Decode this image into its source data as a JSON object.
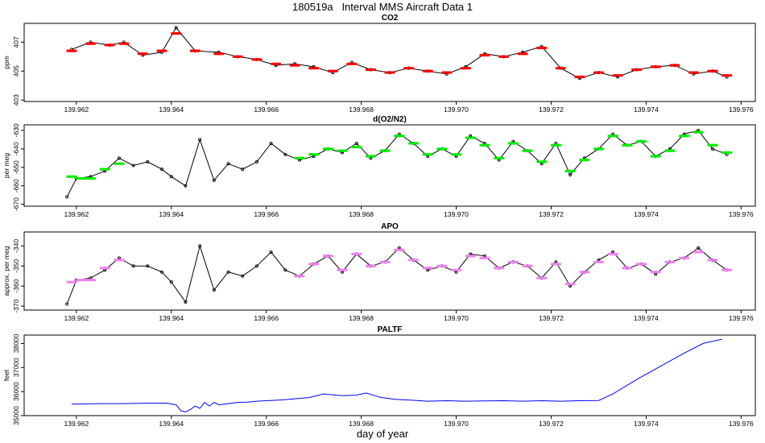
{
  "figure": {
    "title": "180519a   Interval MMS Aircraft Data 1",
    "xlabel": "day of year"
  },
  "chart_data": [
    {
      "type": "scatter",
      "title": "CO2",
      "ylabel": "ppm",
      "xlim": [
        139.9609,
        139.9763
      ],
      "ylim": [
        402.9,
        408.3
      ],
      "xticks": [
        "139.962",
        "139.964",
        "139.966",
        "139.968",
        "139.970",
        "139.972",
        "139.974",
        "139.976"
      ],
      "yticks": [
        "403",
        "405",
        "407"
      ],
      "series": [
        {
          "style": "line-with-points",
          "color": "#000000",
          "x": [
            139.9619,
            139.9623,
            139.9627,
            139.963,
            139.9634,
            139.9638,
            139.9641,
            139.9645,
            139.965,
            139.9654,
            139.9658,
            139.9662,
            139.9666,
            139.967,
            139.9674,
            139.9678,
            139.9682,
            139.9686,
            139.969,
            139.9694,
            139.9698,
            139.9702,
            139.9706,
            139.971,
            139.9714,
            139.9718,
            139.9722,
            139.9726,
            139.973,
            139.9734,
            139.9738,
            139.9742,
            139.9746,
            139.975,
            139.9754,
            139.9757
          ],
          "y": [
            406.5,
            407.0,
            406.8,
            407.0,
            406.1,
            406.3,
            408.0,
            406.4,
            406.3,
            406.0,
            405.8,
            405.4,
            405.5,
            405.3,
            404.9,
            405.6,
            405.1,
            404.9,
            405.2,
            405.0,
            404.8,
            405.3,
            406.2,
            406.0,
            406.3,
            406.7,
            405.2,
            404.5,
            404.9,
            404.6,
            405.1,
            405.3,
            405.4,
            404.8,
            405.0,
            404.6
          ]
        },
        {
          "style": "segments",
          "color": "#ff0000",
          "x": [
            139.9619,
            139.9623,
            139.9627,
            139.963,
            139.9634,
            139.9638,
            139.9641,
            139.9645,
            139.965,
            139.9654,
            139.9658,
            139.9662,
            139.9666,
            139.967,
            139.9674,
            139.9678,
            139.9682,
            139.9686,
            139.969,
            139.9694,
            139.9698,
            139.9702,
            139.9706,
            139.971,
            139.9714,
            139.9718,
            139.9722,
            139.9726,
            139.973,
            139.9734,
            139.9738,
            139.9742,
            139.9746,
            139.975,
            139.9754,
            139.9757
          ],
          "y": [
            406.4,
            406.9,
            406.8,
            406.9,
            406.2,
            406.4,
            407.6,
            406.4,
            406.2,
            406.0,
            405.8,
            405.5,
            405.4,
            405.2,
            405.0,
            405.5,
            405.1,
            404.9,
            405.2,
            405.0,
            404.9,
            405.2,
            406.1,
            406.0,
            406.2,
            406.6,
            405.2,
            404.6,
            404.9,
            404.7,
            405.1,
            405.3,
            405.4,
            404.9,
            405.0,
            404.7
          ]
        }
      ]
    },
    {
      "type": "scatter",
      "title": "d(O2/N2)",
      "ylabel": "per meg",
      "xlim": [
        139.9609,
        139.9763
      ],
      "ylim": [
        -671,
        -627
      ],
      "xticks": [
        "139.962",
        "139.964",
        "139.966",
        "139.968",
        "139.970",
        "139.972",
        "139.974",
        "139.976"
      ],
      "yticks": [
        "-670",
        "-660",
        "-650",
        "-640",
        "-630"
      ],
      "series": [
        {
          "style": "line-with-points",
          "color": "#000000",
          "x": [
            139.9618,
            139.962,
            139.9623,
            139.9626,
            139.9629,
            139.9632,
            139.9635,
            139.9638,
            139.964,
            139.9643,
            139.9646,
            139.9649,
            139.9652,
            139.9655,
            139.9658,
            139.9661,
            139.9664,
            139.9667,
            139.967,
            139.9673,
            139.9676,
            139.9679,
            139.9682,
            139.9685,
            139.9688,
            139.9691,
            139.9694,
            139.9697,
            139.97,
            139.9703,
            139.9706,
            139.9709,
            139.9712,
            139.9715,
            139.9718,
            139.9721,
            139.9724,
            139.9727,
            139.973,
            139.9733,
            139.9736,
            139.9739,
            139.9742,
            139.9745,
            139.9748,
            139.9751,
            139.9754,
            139.9757
          ],
          "y": [
            -666,
            -656,
            -655,
            -652,
            -645,
            -649,
            -647,
            -651,
            -655,
            -660,
            -635,
            -657,
            -648,
            -651,
            -647,
            -637,
            -643,
            -646,
            -644,
            -640,
            -642,
            -637,
            -645,
            -641,
            -632,
            -637,
            -644,
            -640,
            -644,
            -633,
            -637,
            -646,
            -636,
            -641,
            -648,
            -637,
            -654,
            -645,
            -640,
            -632,
            -638,
            -636,
            -644,
            -640,
            -632,
            -630,
            -640,
            -643
          ]
        },
        {
          "style": "segments",
          "color": "#00ee00",
          "x": [
            139.9619,
            139.9621,
            139.9623,
            139.9626,
            139.9629,
            139.9667,
            139.967,
            139.9673,
            139.9676,
            139.9679,
            139.9682,
            139.9685,
            139.9688,
            139.9691,
            139.9694,
            139.9697,
            139.97,
            139.9703,
            139.9706,
            139.9709,
            139.9712,
            139.9715,
            139.9718,
            139.9721,
            139.9724,
            139.9727,
            139.973,
            139.9733,
            139.9736,
            139.9739,
            139.9742,
            139.9745,
            139.9748,
            139.9751,
            139.9754,
            139.9757
          ],
          "y": [
            -655,
            -656,
            -656,
            -651,
            -648,
            -645,
            -643,
            -640,
            -641,
            -639,
            -644,
            -641,
            -633,
            -637,
            -643,
            -640,
            -643,
            -634,
            -638,
            -645,
            -637,
            -641,
            -647,
            -638,
            -652,
            -646,
            -640,
            -633,
            -638,
            -636,
            -644,
            -641,
            -633,
            -631,
            -638,
            -642
          ]
        }
      ]
    },
    {
      "type": "scatter",
      "title": "APO",
      "ylabel": "approx. per meg",
      "xlim": [
        139.9609,
        139.9763
      ],
      "ylim": [
        -372,
        -333
      ],
      "xticks": [
        "139.962",
        "139.964",
        "139.966",
        "139.968",
        "139.970",
        "139.972",
        "139.974",
        "139.976"
      ],
      "yticks": [
        "-370",
        "-360",
        "-350",
        "-340"
      ],
      "series": [
        {
          "style": "line-with-points",
          "color": "#000000",
          "x": [
            139.9618,
            139.962,
            139.9623,
            139.9626,
            139.9629,
            139.9632,
            139.9635,
            139.9638,
            139.964,
            139.9643,
            139.9646,
            139.9649,
            139.9652,
            139.9655,
            139.9658,
            139.9661,
            139.9664,
            139.9667,
            139.967,
            139.9673,
            139.9676,
            139.9679,
            139.9682,
            139.9685,
            139.9688,
            139.9691,
            139.9694,
            139.9697,
            139.97,
            139.9703,
            139.9706,
            139.9709,
            139.9712,
            139.9715,
            139.9718,
            139.9721,
            139.9724,
            139.9727,
            139.973,
            139.9733,
            139.9736,
            139.9739,
            139.9742,
            139.9745,
            139.9748,
            139.9751,
            139.9754,
            139.9757
          ],
          "y": [
            -369,
            -357,
            -356,
            -352,
            -346,
            -350,
            -350,
            -353,
            -358,
            -368,
            -340,
            -362,
            -353,
            -355,
            -350,
            -343,
            -352,
            -355,
            -349,
            -345,
            -353,
            -344,
            -350,
            -348,
            -341,
            -347,
            -352,
            -350,
            -353,
            -344,
            -345,
            -351,
            -348,
            -350,
            -356,
            -348,
            -360,
            -353,
            -347,
            -343,
            -351,
            -349,
            -354,
            -348,
            -346,
            -341,
            -347,
            -352
          ]
        },
        {
          "style": "segments",
          "color": "#ee82ee",
          "x": [
            139.9619,
            139.9621,
            139.9623,
            139.9626,
            139.9629,
            139.9667,
            139.967,
            139.9673,
            139.9676,
            139.9679,
            139.9682,
            139.9685,
            139.9688,
            139.9691,
            139.9694,
            139.9697,
            139.97,
            139.9703,
            139.9706,
            139.9709,
            139.9712,
            139.9715,
            139.9718,
            139.9721,
            139.9724,
            139.9727,
            139.973,
            139.9733,
            139.9736,
            139.9739,
            139.9742,
            139.9745,
            139.9748,
            139.9751,
            139.9754,
            139.9757
          ],
          "y": [
            -358,
            -357,
            -357,
            -351,
            -347,
            -355,
            -349,
            -345,
            -352,
            -344,
            -350,
            -348,
            -342,
            -347,
            -351,
            -350,
            -352,
            -345,
            -346,
            -351,
            -348,
            -350,
            -356,
            -349,
            -359,
            -353,
            -348,
            -344,
            -351,
            -349,
            -353,
            -348,
            -346,
            -343,
            -347,
            -352
          ]
        }
      ]
    },
    {
      "type": "line",
      "title": "PALTF",
      "ylabel": "feet",
      "xlim": [
        139.9609,
        139.9763
      ],
      "ylim": [
        35000,
        38350
      ],
      "xticks": [
        "139.962",
        "139.964",
        "139.966",
        "139.968",
        "139.970",
        "139.972",
        "139.974",
        "139.976"
      ],
      "yticks": [
        "35000",
        "36000",
        "37000",
        "38000"
      ],
      "series": [
        {
          "color": "#0000ff",
          "x": [
            139.9619,
            139.9625,
            139.963,
            139.9635,
            139.9639,
            139.9641,
            139.9642,
            139.9643,
            139.9644,
            139.9645,
            139.9646,
            139.9647,
            139.9648,
            139.9649,
            139.965,
            139.9652,
            139.9654,
            139.9656,
            139.9658,
            139.966,
            139.9663,
            139.9666,
            139.9669,
            139.9672,
            139.9676,
            139.9679,
            139.9681,
            139.9684,
            139.9687,
            139.969,
            139.9694,
            139.9698,
            139.9702,
            139.9706,
            139.971,
            139.9714,
            139.9718,
            139.9722,
            139.9726,
            139.973,
            139.9733,
            139.9738,
            139.9743,
            139.9748,
            139.9752,
            139.9756
          ],
          "y": [
            35480,
            35500,
            35500,
            35520,
            35520,
            35450,
            35200,
            35150,
            35250,
            35400,
            35300,
            35550,
            35400,
            35550,
            35450,
            35500,
            35550,
            35560,
            35600,
            35620,
            35650,
            35700,
            35750,
            35900,
            35830,
            35850,
            35940,
            35760,
            35680,
            35650,
            35600,
            35620,
            35600,
            35610,
            35620,
            35600,
            35620,
            35600,
            35620,
            35630,
            35900,
            36500,
            37050,
            37600,
            38000,
            38180
          ]
        }
      ]
    }
  ]
}
